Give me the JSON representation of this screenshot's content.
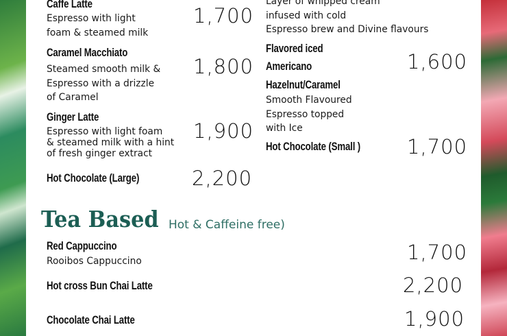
{
  "left_column": [
    {
      "name": "Caffe Latte",
      "description": [
        "Espresso with light",
        "foam & steamed milk"
      ],
      "price": "1,700"
    },
    {
      "name": "Caramel Macchiato",
      "description": [
        "Steamed smooth milk &",
        "Espresso with a drizzle",
        "of Caramel"
      ],
      "price": "1,800"
    },
    {
      "name": "Ginger Latte",
      "description": [
        "Espresso with light foam",
        "& steamed milk with a hint",
        "of fresh ginger extract"
      ],
      "price": "1,900"
    },
    {
      "name": "Hot Chocolate (Large)",
      "price": "2,200"
    }
  ],
  "right_column": {
    "partial_description": [
      "Layer of whipped cream",
      "infused with cold",
      "Espresso brew and Divine flavours"
    ],
    "items": [
      {
        "name": [
          "Flavored iced",
          "Americano"
        ],
        "price": "1,600"
      },
      {
        "name": "Hazelnut/Caramel",
        "description": [
          "Smooth Flavoured",
          "Espresso topped",
          "with Ice"
        ]
      },
      {
        "name": "Hot Chocolate (Small )",
        "price": "1,700"
      }
    ]
  },
  "tea_section": {
    "title": "Tea Based",
    "subtitle": "Hot & Caffeine free)",
    "items": [
      {
        "name": "Red Cappuccino",
        "description": "Rooibos Cappuccino",
        "price": "1,700"
      },
      {
        "name": "Hot cross Bun Chai Latte",
        "price": "2,200"
      },
      {
        "name": "Chocolate Chai Latte",
        "price": "1,900"
      }
    ]
  },
  "colors": {
    "heading": "#1c5e54",
    "leaf_green": "#2f7d3c",
    "flower_pink": "#e76a78"
  }
}
